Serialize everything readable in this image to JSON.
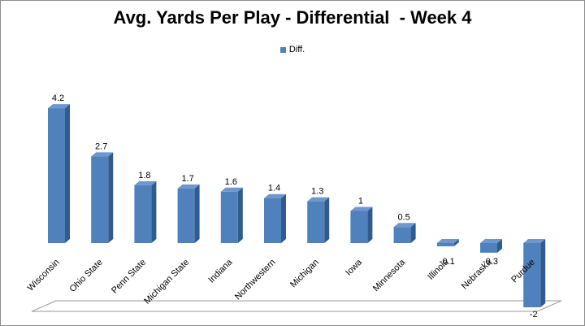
{
  "chart_data": {
    "type": "bar",
    "title": "Avg. Yards Per Play - Differential  - Week 4",
    "categories": [
      "Wisconsin",
      "Ohio State",
      "Penn State",
      "Michigan State",
      "Indiana",
      "Northwestern",
      "Michigan",
      "Iowa",
      "Minnesota",
      "Illinois",
      "Nebraska",
      "Purdue"
    ],
    "series": [
      {
        "name": "Diff.",
        "values": [
          4.2,
          2.7,
          1.8,
          1.7,
          1.6,
          1.4,
          1.3,
          1,
          0.5,
          -0.1,
          -0.3,
          -2
        ]
      }
    ],
    "value_labels": [
      "4.2",
      "2.7",
      "1.8",
      "1.7",
      "1.6",
      "1.4",
      "1.3",
      "1",
      "0.5",
      "-0.1",
      "-0.3",
      "-2"
    ],
    "legend_position": "top",
    "grid": false,
    "style": "3d-column",
    "colors": {
      "bar_front": "#4f81bd",
      "bar_side": "#2f5b8d",
      "bar_top": "#6f97cc",
      "floor": "#ffffff"
    }
  }
}
